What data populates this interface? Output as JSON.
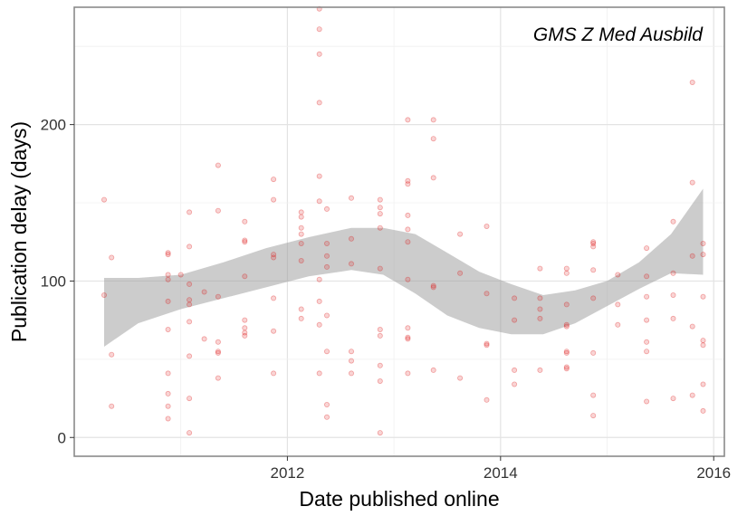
{
  "chart_data": {
    "type": "scatter",
    "title": "",
    "annotation": "GMS Z Med Ausbild",
    "xlabel": "Date published online",
    "ylabel": "Publication delay (days)",
    "xlim": [
      2010.0,
      2016.1
    ],
    "ylim": [
      -12,
      275
    ],
    "x_ticks": [
      2012,
      2014,
      2016
    ],
    "x_tick_labels": [
      "2012",
      "2014",
      "2016"
    ],
    "y_ticks": [
      0,
      100,
      200
    ],
    "y_tick_labels": [
      "0",
      "100",
      "200"
    ],
    "grid": true,
    "point_color": "#dd1111",
    "band_color": "#999999",
    "series": [
      {
        "type": "scatter",
        "points": [
          [
            2010.28,
            91
          ],
          [
            2010.28,
            152
          ],
          [
            2010.35,
            115
          ],
          [
            2010.35,
            53
          ],
          [
            2010.35,
            20
          ],
          [
            2010.88,
            118
          ],
          [
            2010.88,
            117
          ],
          [
            2010.88,
            104
          ],
          [
            2010.88,
            101
          ],
          [
            2010.88,
            87
          ],
          [
            2010.88,
            69
          ],
          [
            2010.88,
            41
          ],
          [
            2010.88,
            28
          ],
          [
            2010.88,
            20
          ],
          [
            2010.88,
            12
          ],
          [
            2011.0,
            104
          ],
          [
            2011.08,
            144
          ],
          [
            2011.08,
            122
          ],
          [
            2011.08,
            98
          ],
          [
            2011.08,
            88
          ],
          [
            2011.08,
            85
          ],
          [
            2011.08,
            74
          ],
          [
            2011.08,
            52
          ],
          [
            2011.08,
            25
          ],
          [
            2011.08,
            3
          ],
          [
            2011.22,
            93
          ],
          [
            2011.22,
            63
          ],
          [
            2011.35,
            174
          ],
          [
            2011.35,
            145
          ],
          [
            2011.35,
            90
          ],
          [
            2011.35,
            61
          ],
          [
            2011.35,
            55
          ],
          [
            2011.35,
            54
          ],
          [
            2011.35,
            38
          ],
          [
            2011.6,
            138
          ],
          [
            2011.6,
            126
          ],
          [
            2011.6,
            125
          ],
          [
            2011.6,
            103
          ],
          [
            2011.6,
            75
          ],
          [
            2011.6,
            70
          ],
          [
            2011.6,
            67
          ],
          [
            2011.6,
            65
          ],
          [
            2011.87,
            165
          ],
          [
            2011.87,
            152
          ],
          [
            2011.87,
            117
          ],
          [
            2011.87,
            115
          ],
          [
            2011.87,
            89
          ],
          [
            2011.87,
            68
          ],
          [
            2011.87,
            41
          ],
          [
            2012.13,
            144
          ],
          [
            2012.13,
            141
          ],
          [
            2012.13,
            134
          ],
          [
            2012.13,
            130
          ],
          [
            2012.13,
            124
          ],
          [
            2012.13,
            113
          ],
          [
            2012.13,
            82
          ],
          [
            2012.13,
            76
          ],
          [
            2012.3,
            274
          ],
          [
            2012.3,
            261
          ],
          [
            2012.3,
            245
          ],
          [
            2012.3,
            214
          ],
          [
            2012.3,
            167
          ],
          [
            2012.3,
            151
          ],
          [
            2012.3,
            101
          ],
          [
            2012.3,
            87
          ],
          [
            2012.3,
            72
          ],
          [
            2012.3,
            41
          ],
          [
            2012.37,
            146
          ],
          [
            2012.37,
            124
          ],
          [
            2012.37,
            116
          ],
          [
            2012.37,
            109
          ],
          [
            2012.37,
            78
          ],
          [
            2012.37,
            55
          ],
          [
            2012.37,
            21
          ],
          [
            2012.37,
            13
          ],
          [
            2012.6,
            153
          ],
          [
            2012.6,
            127
          ],
          [
            2012.6,
            111
          ],
          [
            2012.6,
            55
          ],
          [
            2012.6,
            49
          ],
          [
            2012.6,
            41
          ],
          [
            2012.87,
            152
          ],
          [
            2012.87,
            147
          ],
          [
            2012.87,
            143
          ],
          [
            2012.87,
            134
          ],
          [
            2012.87,
            108
          ],
          [
            2012.87,
            69
          ],
          [
            2012.87,
            65
          ],
          [
            2012.87,
            46
          ],
          [
            2012.87,
            36
          ],
          [
            2012.87,
            3
          ],
          [
            2013.13,
            203
          ],
          [
            2013.13,
            164
          ],
          [
            2013.13,
            162
          ],
          [
            2013.13,
            142
          ],
          [
            2013.13,
            133
          ],
          [
            2013.13,
            125
          ],
          [
            2013.13,
            101
          ],
          [
            2013.13,
            70
          ],
          [
            2013.13,
            64
          ],
          [
            2013.13,
            63
          ],
          [
            2013.13,
            41
          ],
          [
            2013.37,
            203
          ],
          [
            2013.37,
            191
          ],
          [
            2013.37,
            166
          ],
          [
            2013.37,
            97
          ],
          [
            2013.37,
            96
          ],
          [
            2013.37,
            43
          ],
          [
            2013.62,
            130
          ],
          [
            2013.62,
            105
          ],
          [
            2013.62,
            38
          ],
          [
            2013.87,
            135
          ],
          [
            2013.87,
            92
          ],
          [
            2013.87,
            60
          ],
          [
            2013.87,
            59
          ],
          [
            2013.87,
            24
          ],
          [
            2014.13,
            89
          ],
          [
            2014.13,
            75
          ],
          [
            2014.13,
            43
          ],
          [
            2014.13,
            34
          ],
          [
            2014.37,
            108
          ],
          [
            2014.37,
            89
          ],
          [
            2014.37,
            82
          ],
          [
            2014.37,
            76
          ],
          [
            2014.37,
            43
          ],
          [
            2014.62,
            108
          ],
          [
            2014.62,
            105
          ],
          [
            2014.62,
            85
          ],
          [
            2014.62,
            72
          ],
          [
            2014.62,
            71
          ],
          [
            2014.62,
            55
          ],
          [
            2014.62,
            54
          ],
          [
            2014.62,
            45
          ],
          [
            2014.62,
            44
          ],
          [
            2014.87,
            125
          ],
          [
            2014.87,
            124
          ],
          [
            2014.87,
            122
          ],
          [
            2014.87,
            107
          ],
          [
            2014.87,
            89
          ],
          [
            2014.87,
            54
          ],
          [
            2014.87,
            27
          ],
          [
            2014.87,
            14
          ],
          [
            2015.1,
            104
          ],
          [
            2015.1,
            85
          ],
          [
            2015.1,
            72
          ],
          [
            2015.37,
            121
          ],
          [
            2015.37,
            103
          ],
          [
            2015.37,
            90
          ],
          [
            2015.37,
            75
          ],
          [
            2015.37,
            61
          ],
          [
            2015.37,
            55
          ],
          [
            2015.37,
            23
          ],
          [
            2015.62,
            138
          ],
          [
            2015.62,
            105
          ],
          [
            2015.62,
            91
          ],
          [
            2015.62,
            76
          ],
          [
            2015.62,
            25
          ],
          [
            2015.8,
            227
          ],
          [
            2015.8,
            163
          ],
          [
            2015.8,
            116
          ],
          [
            2015.8,
            71
          ],
          [
            2015.8,
            27
          ],
          [
            2015.9,
            124
          ],
          [
            2015.9,
            117
          ],
          [
            2015.9,
            90
          ],
          [
            2015.9,
            62
          ],
          [
            2015.9,
            59
          ],
          [
            2015.9,
            34
          ],
          [
            2015.9,
            17
          ]
        ]
      },
      {
        "type": "smooth-band",
        "x": [
          2010.28,
          2010.6,
          2011.0,
          2011.4,
          2011.8,
          2012.2,
          2012.6,
          2012.9,
          2013.2,
          2013.5,
          2013.8,
          2014.1,
          2014.4,
          2014.7,
          2015.0,
          2015.3,
          2015.6,
          2015.9
        ],
        "lower": [
          58,
          73,
          82,
          89,
          96,
          103,
          107,
          104,
          92,
          78,
          70,
          66,
          66,
          73,
          84,
          95,
          105,
          104
        ],
        "upper": [
          102,
          102,
          104,
          112,
          121,
          128,
          134,
          134,
          130,
          118,
          106,
          98,
          91,
          94,
          100,
          112,
          130,
          159
        ]
      }
    ]
  }
}
